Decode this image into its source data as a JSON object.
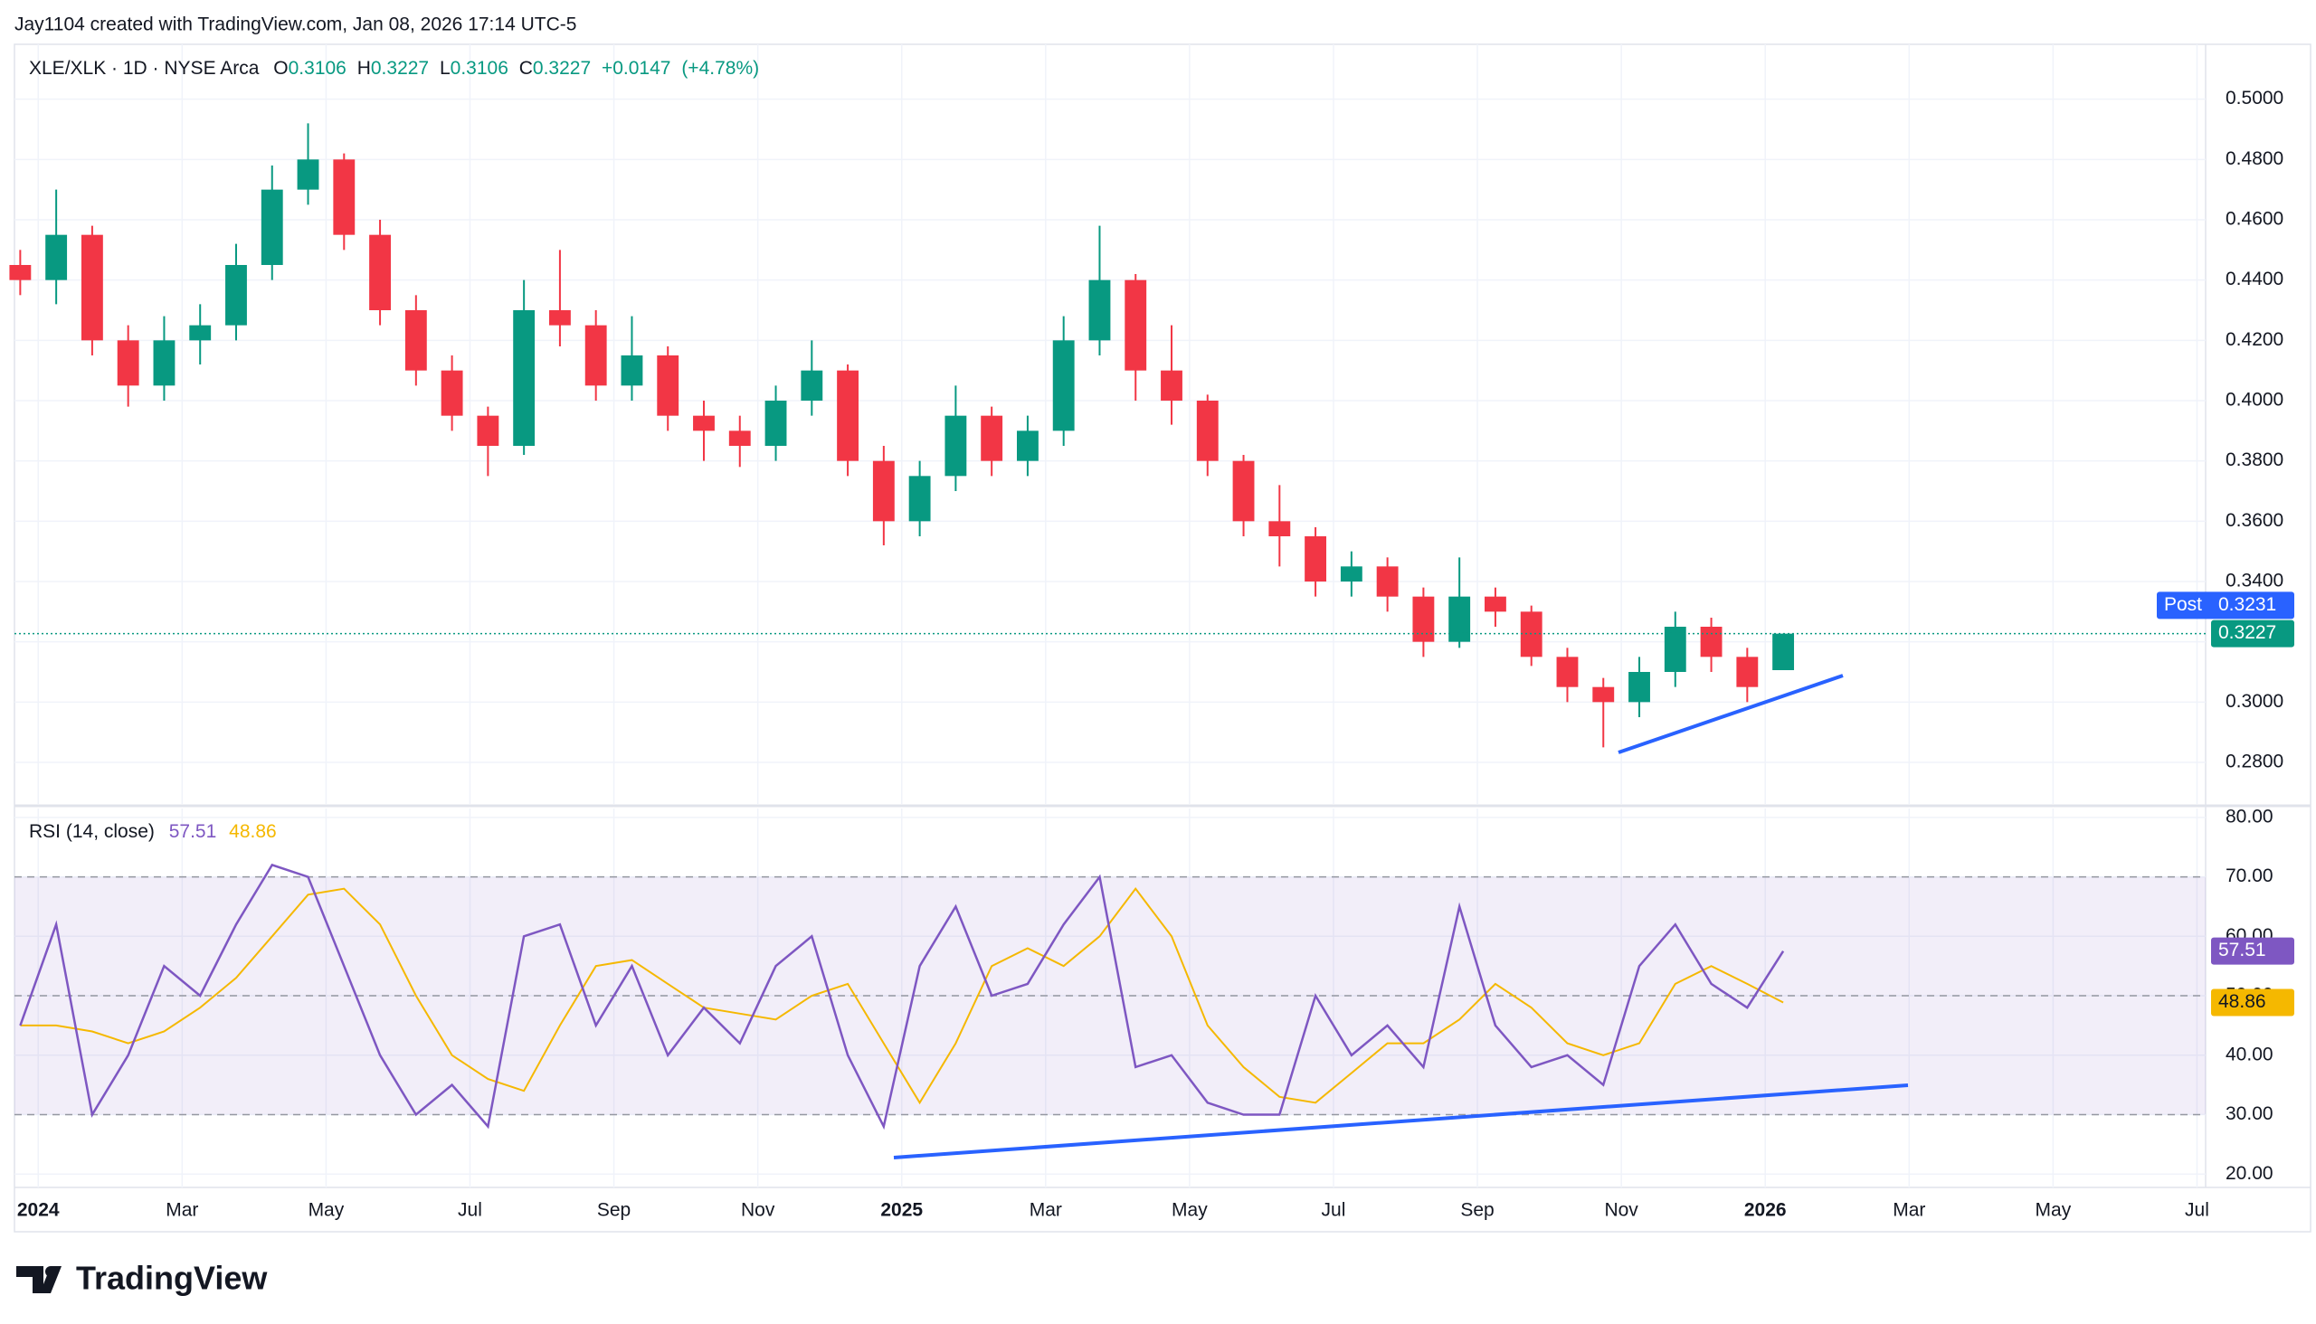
{
  "attribution": "Jay1104 created with TradingView.com, Jan 08, 2026 17:14 UTC-5",
  "brand": "TradingView",
  "chart_data": [
    {
      "type": "candlestick",
      "title": "XLE/XLK · 1D · NYSE Arca",
      "ohlc_labels": [
        "O",
        "H",
        "L",
        "C"
      ],
      "change": "+0.0147",
      "change_pct": "(+4.78%)",
      "up_color": "#089981",
      "down_color": "#f23645",
      "x": [
        -0.25,
        0.25,
        0.75,
        1.25,
        1.75,
        2.25,
        2.75,
        3.25,
        3.75,
        4.25,
        4.75,
        5.25,
        5.75,
        6.25,
        6.75,
        7.25,
        7.75,
        8.25,
        8.75,
        9.25,
        9.75,
        10.25,
        10.75,
        11.25,
        11.75,
        12.25,
        12.75,
        13.25,
        13.75,
        14.25,
        14.75,
        15.25,
        15.75,
        16.25,
        16.75,
        17.25,
        17.75,
        18.25,
        18.75,
        19.25,
        19.75,
        20.25,
        20.75,
        21.25,
        21.75,
        22.25,
        22.75,
        23.25,
        23.75,
        24.25
      ],
      "open": [
        0.445,
        0.44,
        0.455,
        0.42,
        0.405,
        0.42,
        0.425,
        0.445,
        0.47,
        0.48,
        0.455,
        0.43,
        0.41,
        0.395,
        0.385,
        0.43,
        0.425,
        0.405,
        0.415,
        0.395,
        0.39,
        0.385,
        0.4,
        0.41,
        0.38,
        0.36,
        0.375,
        0.395,
        0.38,
        0.39,
        0.42,
        0.44,
        0.41,
        0.4,
        0.38,
        0.36,
        0.355,
        0.34,
        0.345,
        0.335,
        0.32,
        0.335,
        0.33,
        0.315,
        0.305,
        0.3,
        0.31,
        0.325,
        0.315,
        0.3106
      ],
      "high": [
        0.45,
        0.47,
        0.458,
        0.425,
        0.428,
        0.432,
        0.452,
        0.478,
        0.492,
        0.482,
        0.46,
        0.435,
        0.415,
        0.398,
        0.44,
        0.45,
        0.43,
        0.428,
        0.418,
        0.4,
        0.395,
        0.405,
        0.42,
        0.412,
        0.385,
        0.38,
        0.405,
        0.398,
        0.395,
        0.428,
        0.458,
        0.442,
        0.425,
        0.402,
        0.382,
        0.372,
        0.358,
        0.35,
        0.348,
        0.338,
        0.348,
        0.338,
        0.332,
        0.318,
        0.308,
        0.315,
        0.33,
        0.328,
        0.318,
        0.3227
      ],
      "low": [
        0.435,
        0.432,
        0.415,
        0.398,
        0.4,
        0.412,
        0.42,
        0.44,
        0.465,
        0.45,
        0.425,
        0.405,
        0.39,
        0.375,
        0.382,
        0.418,
        0.4,
        0.4,
        0.39,
        0.38,
        0.378,
        0.38,
        0.395,
        0.375,
        0.352,
        0.355,
        0.37,
        0.375,
        0.375,
        0.385,
        0.415,
        0.4,
        0.392,
        0.375,
        0.355,
        0.345,
        0.335,
        0.335,
        0.33,
        0.315,
        0.318,
        0.325,
        0.312,
        0.3,
        0.285,
        0.295,
        0.305,
        0.31,
        0.3,
        0.3106
      ],
      "close": [
        0.44,
        0.455,
        0.42,
        0.405,
        0.42,
        0.425,
        0.445,
        0.47,
        0.48,
        0.455,
        0.43,
        0.41,
        0.395,
        0.385,
        0.43,
        0.425,
        0.405,
        0.415,
        0.395,
        0.39,
        0.385,
        0.4,
        0.41,
        0.38,
        0.36,
        0.375,
        0.395,
        0.38,
        0.39,
        0.42,
        0.44,
        0.41,
        0.4,
        0.38,
        0.36,
        0.355,
        0.34,
        0.345,
        0.335,
        0.32,
        0.335,
        0.33,
        0.315,
        0.305,
        0.3,
        0.31,
        0.325,
        0.315,
        0.305,
        0.3227
      ],
      "post_label": "Post",
      "post_value": 0.3231,
      "post_color": "#2962ff",
      "xlim": [
        -0.33,
        30.12
      ],
      "ylim": [
        0.2662,
        0.5182
      ],
      "yticks": [
        {
          "value": 0.28,
          "label": "0.2800"
        },
        {
          "value": 0.3,
          "label": "0.3000"
        },
        {
          "value": 0.32,
          "label": "0.3200"
        },
        {
          "value": 0.34,
          "label": "0.3400"
        },
        {
          "value": 0.36,
          "label": "0.3600"
        },
        {
          "value": 0.38,
          "label": "0.3800"
        },
        {
          "value": 0.4,
          "label": "0.4000"
        },
        {
          "value": 0.42,
          "label": "0.4200"
        },
        {
          "value": 0.44,
          "label": "0.4400"
        },
        {
          "value": 0.46,
          "label": "0.4600"
        },
        {
          "value": 0.48,
          "label": "0.4800"
        },
        {
          "value": 0.5,
          "label": "0.5000"
        }
      ],
      "grid": true
    },
    {
      "type": "rsi",
      "title": "RSI (14, close)",
      "x": [
        -0.25,
        0.25,
        0.75,
        1.25,
        1.75,
        2.25,
        2.75,
        3.25,
        3.75,
        4.25,
        4.75,
        5.25,
        5.75,
        6.25,
        6.75,
        7.25,
        7.75,
        8.25,
        8.75,
        9.25,
        9.75,
        10.25,
        10.75,
        11.25,
        11.75,
        12.25,
        12.75,
        13.25,
        13.75,
        14.25,
        14.75,
        15.25,
        15.75,
        16.25,
        16.75,
        17.25,
        17.75,
        18.25,
        18.75,
        19.25,
        19.75,
        20.25,
        20.75,
        21.25,
        21.75,
        22.25,
        22.75,
        23.25,
        23.75,
        24.25
      ],
      "series": [
        {
          "color": "#7e57c2",
          "values": [
            45,
            62,
            30,
            40,
            55,
            50,
            62,
            72,
            70,
            55,
            40,
            30,
            35,
            28,
            60,
            62,
            45,
            55,
            40,
            48,
            42,
            55,
            60,
            40,
            28,
            55,
            65,
            50,
            52,
            62,
            70,
            38,
            40,
            32,
            30,
            30,
            50,
            40,
            45,
            38,
            65,
            45,
            38,
            40,
            35,
            55,
            62,
            52,
            48,
            57.51
          ]
        },
        {
          "color": "#f5b800",
          "values": [
            45,
            45,
            44,
            42,
            44,
            48,
            53,
            60,
            67,
            68,
            62,
            50,
            40,
            36,
            34,
            45,
            55,
            56,
            52,
            48,
            47,
            46,
            50,
            52,
            42,
            32,
            42,
            55,
            58,
            55,
            60,
            68,
            60,
            45,
            38,
            33,
            32,
            37,
            42,
            42,
            46,
            52,
            48,
            42,
            40,
            42,
            52,
            55,
            52,
            48.86
          ]
        }
      ],
      "bands": [
        30,
        50,
        70
      ],
      "band_fill": "#7e57c2",
      "xlim": [
        -0.33,
        30.12
      ],
      "ylim": [
        17.75,
        81.5
      ],
      "yticks": [
        {
          "value": 20,
          "label": "20.00"
        },
        {
          "value": 30,
          "label": "30.00"
        },
        {
          "value": 40,
          "label": "40.00"
        },
        {
          "value": 50,
          "label": "50.00"
        },
        {
          "value": 60,
          "label": "60.00"
        },
        {
          "value": 70,
          "label": "70.00"
        },
        {
          "value": 80,
          "label": "80.00"
        }
      ],
      "xticks": [
        {
          "value": 0,
          "label": "2024"
        },
        {
          "value": 2,
          "label": "Mar"
        },
        {
          "value": 4,
          "label": "May"
        },
        {
          "value": 6,
          "label": "Jul"
        },
        {
          "value": 8,
          "label": "Sep"
        },
        {
          "value": 10,
          "label": "Nov"
        },
        {
          "value": 12,
          "label": "2025"
        },
        {
          "value": 14,
          "label": "Mar"
        },
        {
          "value": 16,
          "label": "May"
        },
        {
          "value": 18,
          "label": "Jul"
        },
        {
          "value": 20,
          "label": "Sep"
        },
        {
          "value": 22,
          "label": "Nov"
        },
        {
          "value": 24,
          "label": "2026"
        },
        {
          "value": 26,
          "label": "Mar"
        },
        {
          "value": 28,
          "label": "May"
        },
        {
          "value": 30,
          "label": "Jul"
        }
      ],
      "grid": true
    }
  ]
}
